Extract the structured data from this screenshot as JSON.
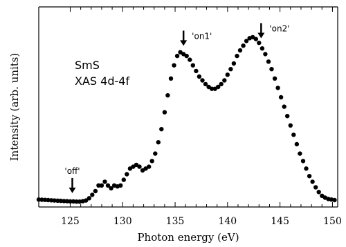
{
  "chart_data": {
    "type": "scatter",
    "xlabel": "Photon energy (eV)",
    "ylabel": "Intensity (arb. units)",
    "xlim": [
      122,
      150.5
    ],
    "ylim": [
      0,
      1.0
    ],
    "y_ticks_labeled": false,
    "x_ticks_major": [
      125,
      130,
      135,
      140,
      145,
      150
    ],
    "x_ticks_major_labels": [
      "125",
      "130",
      "135",
      "140",
      "145",
      "150"
    ],
    "x_ticks_minor": [
      126,
      127,
      128,
      129,
      131,
      132,
      133,
      134,
      136,
      137,
      138,
      139,
      141,
      142,
      143,
      144,
      146,
      147,
      148,
      149
    ],
    "grid": false,
    "inset_text": [
      "SmS",
      "XAS 4d-4f"
    ],
    "annotations": [
      {
        "label": "'off'",
        "x": 125.2,
        "arrow": true
      },
      {
        "label": "'on1'",
        "x": 135.8,
        "arrow": true
      },
      {
        "label": "'on2'",
        "x": 143.2,
        "arrow": true
      }
    ],
    "series": [
      {
        "marker": "filled-circle",
        "color": "#000000",
        "x": [
          122.0,
          122.3,
          122.6,
          122.9,
          123.2,
          123.5,
          123.8,
          124.1,
          124.4,
          124.7,
          125.0,
          125.3,
          125.6,
          125.9,
          126.2,
          126.5,
          126.8,
          127.1,
          127.4,
          127.7,
          128.0,
          128.3,
          128.6,
          128.9,
          129.2,
          129.5,
          129.8,
          130.1,
          130.4,
          130.7,
          131.0,
          131.3,
          131.6,
          131.9,
          132.2,
          132.5,
          132.8,
          133.1,
          133.4,
          133.7,
          134.0,
          134.3,
          134.6,
          134.9,
          135.2,
          135.5,
          135.8,
          136.1,
          136.4,
          136.7,
          137.0,
          137.3,
          137.6,
          137.9,
          138.2,
          138.5,
          138.8,
          139.1,
          139.4,
          139.7,
          140.0,
          140.3,
          140.6,
          140.9,
          141.2,
          141.5,
          141.8,
          142.1,
          142.4,
          142.7,
          143.0,
          143.3,
          143.6,
          143.9,
          144.2,
          144.5,
          144.8,
          145.1,
          145.4,
          145.7,
          146.0,
          146.3,
          146.6,
          146.9,
          147.2,
          147.5,
          147.8,
          148.1,
          148.4,
          148.7,
          149.0,
          149.3,
          149.6,
          149.9,
          150.2
        ],
        "y": [
          0.025,
          0.024,
          0.023,
          0.022,
          0.021,
          0.02,
          0.019,
          0.018,
          0.017,
          0.016,
          0.015,
          0.015,
          0.014,
          0.014,
          0.016,
          0.02,
          0.032,
          0.05,
          0.07,
          0.1,
          0.1,
          0.12,
          0.1,
          0.085,
          0.1,
          0.095,
          0.1,
          0.13,
          0.16,
          0.19,
          0.2,
          0.21,
          0.2,
          0.18,
          0.19,
          0.2,
          0.23,
          0.27,
          0.33,
          0.4,
          0.49,
          0.58,
          0.67,
          0.74,
          0.79,
          0.81,
          0.8,
          0.79,
          0.77,
          0.74,
          0.71,
          0.68,
          0.66,
          0.64,
          0.625,
          0.615,
          0.615,
          0.625,
          0.64,
          0.66,
          0.69,
          0.72,
          0.75,
          0.79,
          0.82,
          0.845,
          0.87,
          0.885,
          0.89,
          0.88,
          0.86,
          0.83,
          0.8,
          0.76,
          0.72,
          0.67,
          0.62,
          0.57,
          0.52,
          0.47,
          0.42,
          0.37,
          0.32,
          0.27,
          0.23,
          0.19,
          0.15,
          0.12,
          0.09,
          0.065,
          0.045,
          0.035,
          0.028,
          0.025,
          0.022
        ]
      }
    ]
  }
}
